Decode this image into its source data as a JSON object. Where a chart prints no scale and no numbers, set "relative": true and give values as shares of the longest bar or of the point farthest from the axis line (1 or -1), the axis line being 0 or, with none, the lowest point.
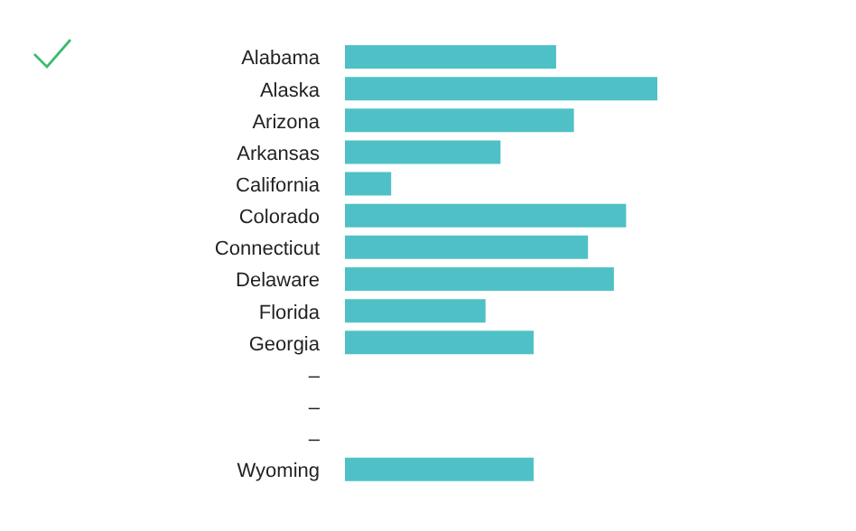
{
  "chart_data": {
    "type": "bar",
    "orientation": "horizontal",
    "relative": true,
    "categories": [
      "Alabama",
      "Alaska",
      "Arizona",
      "Arkansas",
      "California",
      "Colorado",
      "Connecticut",
      "Delaware",
      "Florida",
      "Georgia",
      "–",
      "–",
      "–",
      "Wyoming"
    ],
    "values": [
      0.676,
      1,
      0.733,
      0.498,
      0.148,
      0.9,
      0.778,
      0.861,
      0.45,
      0.604,
      null,
      null,
      null,
      0.604
    ],
    "color": "#4fc1c6"
  }
}
